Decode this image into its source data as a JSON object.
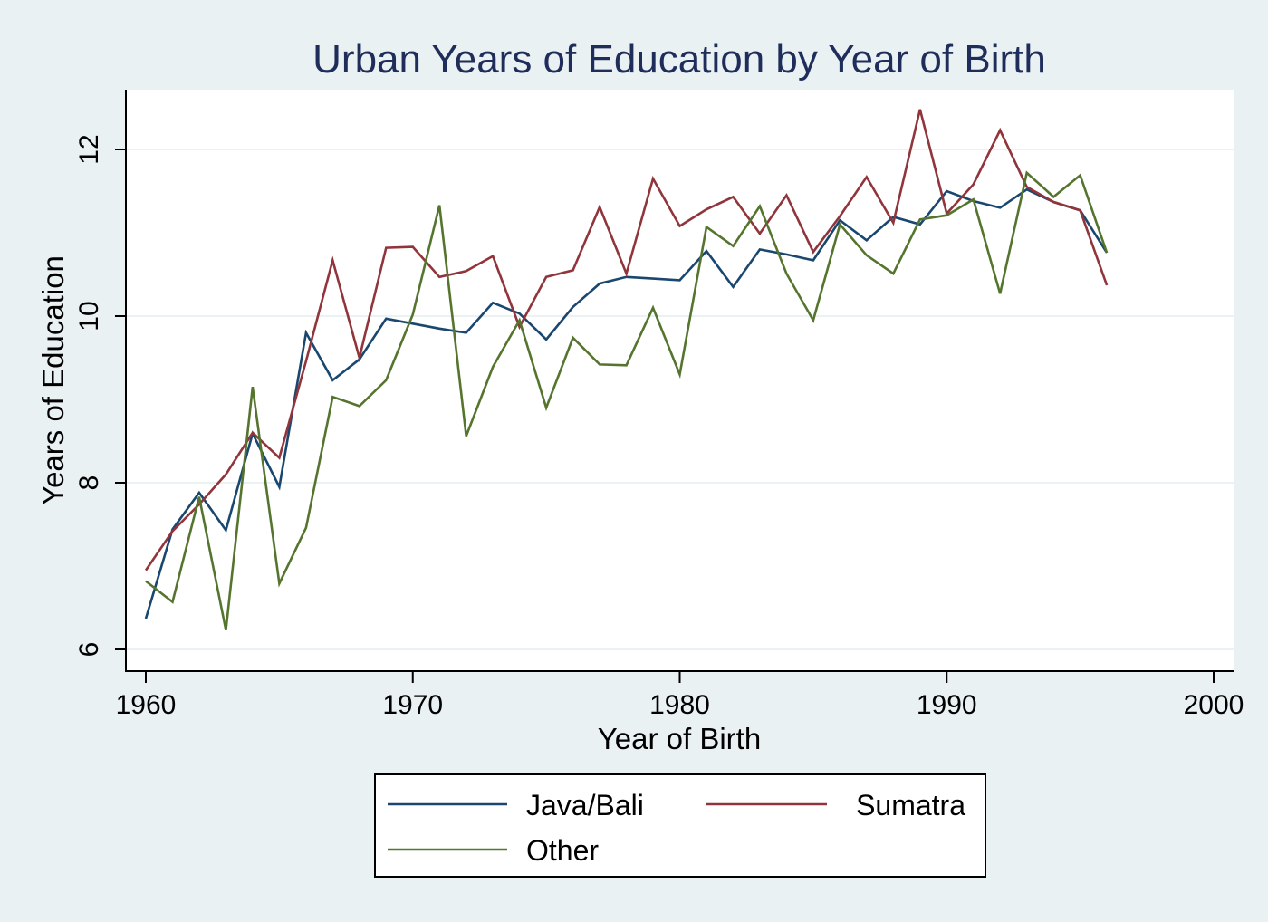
{
  "chart_data": {
    "type": "line",
    "title": "Urban Years of Education by Year of Birth",
    "xlabel": "Year of Birth",
    "ylabel": "Years of Education",
    "xlim": [
      1960,
      2000
    ],
    "ylim": [
      6,
      12
    ],
    "xticks": [
      "1960",
      "1970",
      "1980",
      "1990",
      "2000"
    ],
    "yticks": [
      "6",
      "8",
      "10",
      "12"
    ],
    "grid": "horizontal",
    "legend_position": "bottom",
    "x": [
      1960,
      1961,
      1962,
      1963,
      1964,
      1965,
      1966,
      1967,
      1968,
      1969,
      1970,
      1971,
      1972,
      1973,
      1974,
      1975,
      1976,
      1977,
      1978,
      1979,
      1980,
      1981,
      1982,
      1983,
      1984,
      1985,
      1986,
      1987,
      1988,
      1989,
      1990,
      1991,
      1992,
      1993,
      1994,
      1995,
      1996
    ],
    "series": [
      {
        "name": "Java/Bali",
        "color": "#1a476f",
        "values": [
          6.37,
          7.44,
          7.88,
          7.43,
          8.59,
          7.95,
          9.8,
          9.23,
          9.48,
          9.97,
          9.91,
          9.85,
          9.8,
          10.16,
          10.03,
          9.72,
          10.11,
          10.39,
          10.47,
          10.45,
          10.43,
          10.78,
          10.35,
          10.8,
          10.74,
          10.67,
          11.15,
          10.91,
          11.19,
          11.1,
          11.5,
          11.38,
          11.3,
          11.52,
          11.37,
          11.27,
          10.76
        ]
      },
      {
        "name": "Sumatra",
        "color": "#90353b",
        "values": [
          6.95,
          7.42,
          7.74,
          8.1,
          8.6,
          8.3,
          9.46,
          10.67,
          9.5,
          10.82,
          10.83,
          10.47,
          10.54,
          10.72,
          9.87,
          10.47,
          10.55,
          11.31,
          10.51,
          11.65,
          11.08,
          11.28,
          11.43,
          10.99,
          11.45,
          10.77,
          11.2,
          11.67,
          11.12,
          12.48,
          11.23,
          11.58,
          12.23,
          11.55,
          11.37,
          11.27,
          10.37
        ]
      },
      {
        "name": "Other",
        "color": "#55752f",
        "values": [
          6.82,
          6.57,
          7.83,
          6.23,
          9.15,
          6.79,
          7.46,
          9.03,
          8.92,
          9.23,
          10.02,
          11.33,
          8.56,
          9.39,
          9.95,
          8.9,
          9.74,
          9.42,
          9.41,
          10.1,
          9.3,
          11.07,
          10.84,
          11.32,
          10.51,
          9.95,
          11.1,
          10.73,
          10.51,
          11.16,
          11.21,
          11.4,
          10.27,
          11.72,
          11.43,
          11.69,
          10.76
        ]
      }
    ]
  }
}
